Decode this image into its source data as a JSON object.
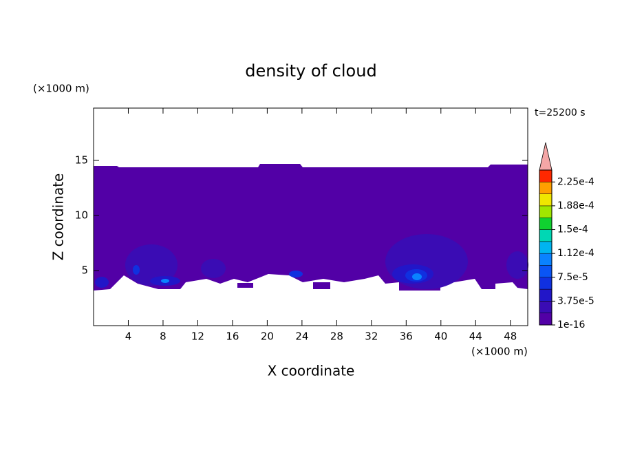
{
  "chart_data": {
    "type": "contour",
    "title": "density of cloud",
    "x_label": "X coordinate",
    "y_label": "Z coordinate",
    "x_unit": "(×1000 m)",
    "y_unit": "(×1000 m)",
    "annotation": "t=25200 s",
    "xlim": [
      0,
      50
    ],
    "xticks": [
      4,
      8,
      12,
      16,
      20,
      24,
      28,
      32,
      36,
      40,
      44,
      48
    ],
    "ylim": [
      0,
      19.75
    ],
    "yticks": [
      5,
      10,
      15
    ],
    "colorbar": {
      "lim": [
        1e-16,
        0.00024375
      ],
      "colors": [
        "#5200a6",
        "#3a0cb4",
        "#2216c8",
        "#1030e0",
        "#0a55f5",
        "#0a82ff",
        "#00b4f0",
        "#00d7b4",
        "#10d230",
        "#a0e600",
        "#f0e600",
        "#ffa000",
        "#ff2800"
      ],
      "extend_color": "#f4a6a6",
      "ticks": [
        1e-16,
        {
          "value": 3.75e-05,
          "label": "3.75e-5"
        },
        {
          "value": 7.5e-05,
          "label": "7.5e-5"
        },
        {
          "value": 0.0001125,
          "label": "1.12e-4"
        },
        {
          "value": 0.00015,
          "label": "1.5e-4"
        },
        {
          "value": 0.0001875,
          "label": "1.88e-4"
        },
        {
          "value": 0.000225,
          "label": "2.25e-4"
        }
      ]
    }
  }
}
